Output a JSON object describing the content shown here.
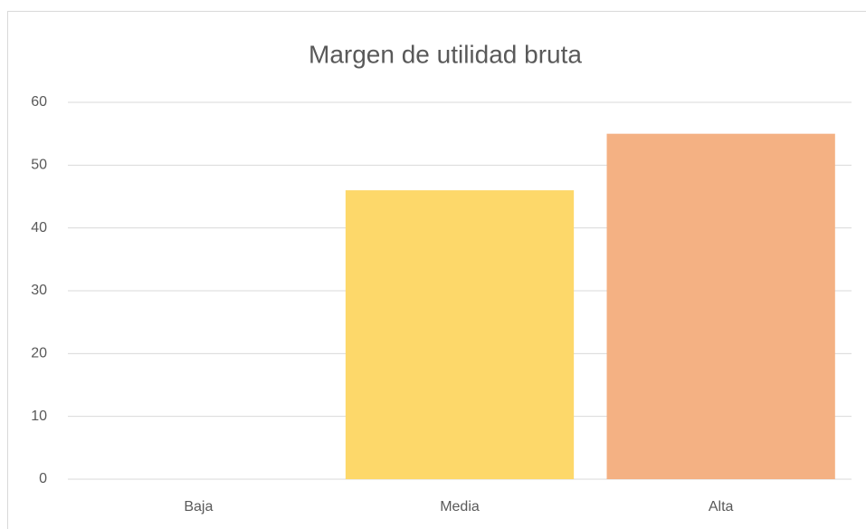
{
  "chart_data": {
    "type": "bar",
    "title": "Margen de utilidad bruta",
    "categories": [
      "Baja",
      "Media",
      "Alta"
    ],
    "values": [
      0,
      46,
      55
    ],
    "colors": [
      null,
      "#fdd86a",
      "#f4b183"
    ],
    "ylim": [
      0,
      60
    ],
    "yticks": [
      0,
      10,
      20,
      30,
      40,
      50,
      60
    ],
    "grid": true
  }
}
